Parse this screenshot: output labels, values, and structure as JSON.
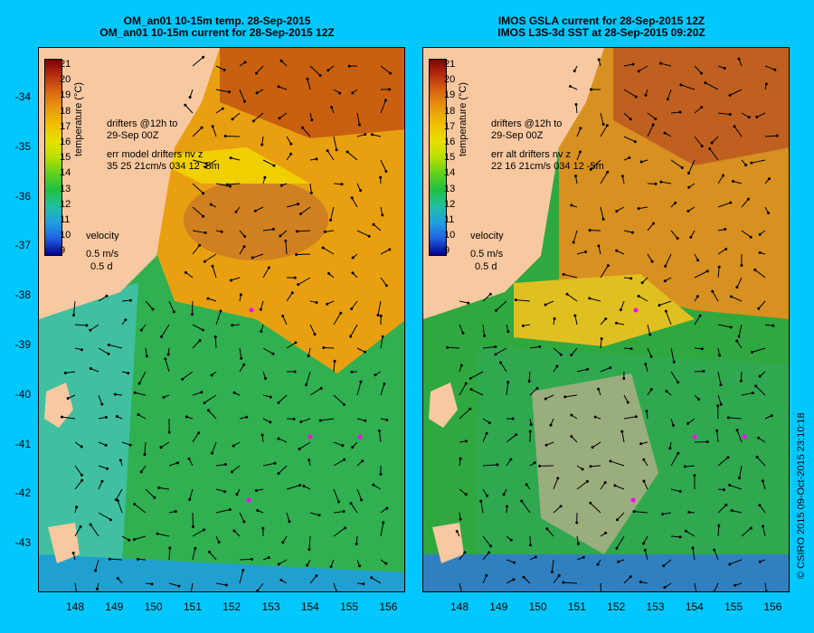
{
  "panels": [
    {
      "title_line1": "OM_an01 10-15m temp. 28-Sep-2015",
      "title_line2": "OM_an01 10-15m current for 28-Sep-2015 12Z",
      "drifters_line1": "drifters @12h to",
      "drifters_line2": "29-Sep 00Z",
      "err_line1": "err model drifters nv z",
      "err_line2": "35 25 21cm/s 034 12 -5m",
      "velocity_label": "velocity",
      "velocity_value": "0.5 m/s",
      "velocity_duration": "0.5 d"
    },
    {
      "title_line1": "IMOS GSLA current for 28-Sep-2015 12Z",
      "title_line2": "IMOS L3S-3d SST at 28-Sep-2015 09:20Z",
      "drifters_line1": "drifters @12h to",
      "drifters_line2": "29-Sep 00Z",
      "err_line1": "err alt drifters nv z",
      "err_line2": "22 16 21cm/s 034 12 -5m",
      "velocity_label": "velocity",
      "velocity_value": "0.5 m/s",
      "velocity_duration": "0.5 d"
    }
  ],
  "colorbar": {
    "ticks": [
      "21",
      "20",
      "19",
      "18",
      "17",
      "16",
      "15",
      "14",
      "13",
      "12",
      "11",
      "10",
      "9"
    ],
    "unit_label": "temperature (°C)",
    "colors": [
      "#800000",
      "#b83010",
      "#d86a10",
      "#e89a10",
      "#f0c000",
      "#e8e000",
      "#b8e000",
      "#60d020",
      "#20c040",
      "#20c0a0",
      "#20a0e0",
      "#2060e0",
      "#000090"
    ]
  },
  "y_axis": [
    "-34",
    "-35",
    "-36",
    "-37",
    "-38",
    "-39",
    "-40",
    "-41",
    "-42",
    "-43"
  ],
  "x_axis": [
    "148",
    "149",
    "150",
    "151",
    "152",
    "153",
    "154",
    "155",
    "156"
  ],
  "land_color": "#f8c8a0",
  "copyright": "© CSIRO 2015   09-Oct-2015 23:10:18"
}
